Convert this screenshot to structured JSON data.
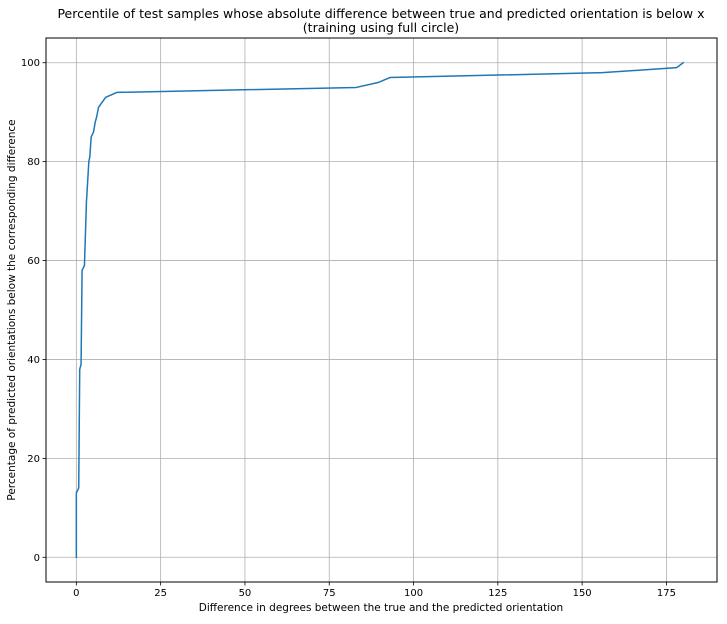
{
  "chart_data": {
    "type": "line",
    "title": "Percentile of test samples whose absolute difference between true and predicted orientation is below x",
    "subtitle": "(training using full circle)",
    "xlabel": "Difference in degrees between the true and the predicted orientation",
    "ylabel": "Percentage of predicted orientations below the corresponding difference",
    "xlim": [
      -9,
      190
    ],
    "ylim": [
      -5,
      105
    ],
    "xticks": [
      0,
      25,
      50,
      75,
      100,
      125,
      150,
      175
    ],
    "yticks": [
      0,
      20,
      40,
      60,
      80,
      100
    ],
    "grid": true,
    "series": [
      {
        "color": "#1f77b4",
        "x": [
          0,
          0,
          0.7,
          1,
          1.4,
          1.7,
          2.4,
          3,
          3.1,
          3.7,
          4,
          4.4,
          5.1,
          5.6,
          6,
          6.6,
          6.6,
          8.7,
          12,
          83,
          89.5,
          93,
          156,
          178,
          180
        ],
        "y": [
          0,
          13,
          14,
          38,
          39,
          58,
          59,
          72,
          73,
          80,
          81,
          85,
          86,
          88,
          89,
          91,
          91,
          93,
          94,
          95,
          96,
          97,
          98,
          99,
          100
        ]
      }
    ]
  }
}
